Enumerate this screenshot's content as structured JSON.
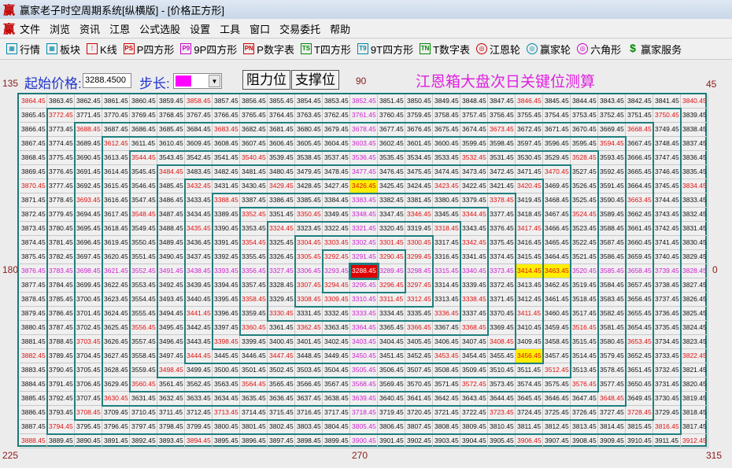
{
  "window": {
    "title": "赢家老子时空周期系统[纵横版] - [价格正方形]",
    "logo": "赢"
  },
  "menu": [
    "文件",
    "浏览",
    "资讯",
    "江恩",
    "公式选股",
    "设置",
    "工具",
    "窗口",
    "交易委托",
    "帮助"
  ],
  "toolbar": [
    {
      "label": "行情",
      "icon": "table-icon"
    },
    {
      "label": "板块",
      "icon": "blocks-icon"
    },
    {
      "label": "K线",
      "icon": "candlestick-icon"
    },
    {
      "label": "P四方形",
      "icon": "ps-icon",
      "glyph": "PS"
    },
    {
      "label": "9P四方形",
      "icon": "p9-icon",
      "glyph": "P9"
    },
    {
      "label": "P数字表",
      "icon": "pn-icon",
      "glyph": "PN"
    },
    {
      "label": "T四方形",
      "icon": "ts-icon",
      "glyph": "TS"
    },
    {
      "label": "9T四方形",
      "icon": "t9-icon",
      "glyph": "T9"
    },
    {
      "label": "T数字表",
      "icon": "tn-icon",
      "glyph": "TN"
    },
    {
      "label": "江恩轮",
      "icon": "gann-wheel-icon"
    },
    {
      "label": "赢家轮",
      "icon": "winner-wheel-icon"
    },
    {
      "label": "六角形",
      "icon": "hexagon-icon"
    },
    {
      "label": "赢家服务",
      "icon": "dollar-icon"
    }
  ],
  "controls": {
    "start_label": "起始价格:",
    "start_value": "3288.4500",
    "step_label": "步长:",
    "step_color": "#ff00ff",
    "resist_button": "阻力位",
    "support_button": "支撑位",
    "headline": "江恩箱大盘次日关键位测算"
  },
  "angles": {
    "a135": "135",
    "a90": "90",
    "a45": "45",
    "a180": "180",
    "a0": "0",
    "a225": "225",
    "a270": "270",
    "a315": "315"
  },
  "square": {
    "center": 3288.45,
    "step": 1,
    "size": 25,
    "direction": "counterclockwise, first move right",
    "highlight_yellow": [
      "3426.45",
      "3414.45",
      "3463.45",
      "3456.45"
    ],
    "colors": {
      "normal": "#111111",
      "resistance": "#dd1111",
      "axis": "#cc22cc",
      "center_bg": "#dd0000",
      "yellow_bg": "#ffee00",
      "lines": "#1f7f7f"
    }
  }
}
